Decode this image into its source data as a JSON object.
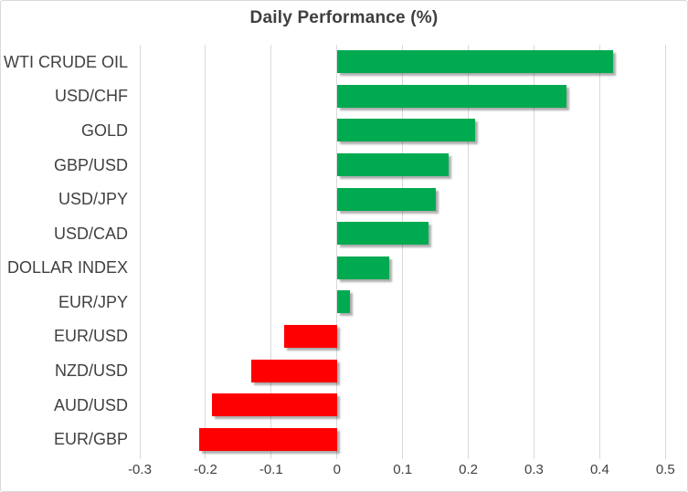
{
  "chart_data": {
    "type": "bar",
    "orientation": "horizontal",
    "title": "Daily Performance (%)",
    "categories": [
      "WTI CRUDE OIL",
      "USD/CHF",
      "GOLD",
      "GBP/USD",
      "USD/JPY",
      "USD/CAD",
      "DOLLAR INDEX",
      "EUR/JPY",
      "EUR/USD",
      "NZD/USD",
      "AUD/USD",
      "EUR/GBP"
    ],
    "values": [
      0.42,
      0.35,
      0.21,
      0.17,
      0.15,
      0.14,
      0.08,
      0.02,
      -0.08,
      -0.13,
      -0.19,
      -0.21
    ],
    "xlabel": "",
    "ylabel": "",
    "xlim": [
      -0.3,
      0.5
    ],
    "xticks": [
      -0.3,
      -0.2,
      -0.1,
      0,
      0.1,
      0.2,
      0.3,
      0.4,
      0.5
    ],
    "xtick_labels": [
      "-0.3",
      "-0.2",
      "-0.1",
      "0",
      "0.1",
      "0.2",
      "0.3",
      "0.4",
      "0.5"
    ],
    "grid": "vertical-gridlines-on",
    "legend": "none",
    "colors": {
      "positive": "#00AA50",
      "negative": "#FF0000",
      "gridline": "#D9D9D9",
      "text": "#404040",
      "border": "#D9D9D9",
      "background": "#FFFFFF"
    }
  }
}
